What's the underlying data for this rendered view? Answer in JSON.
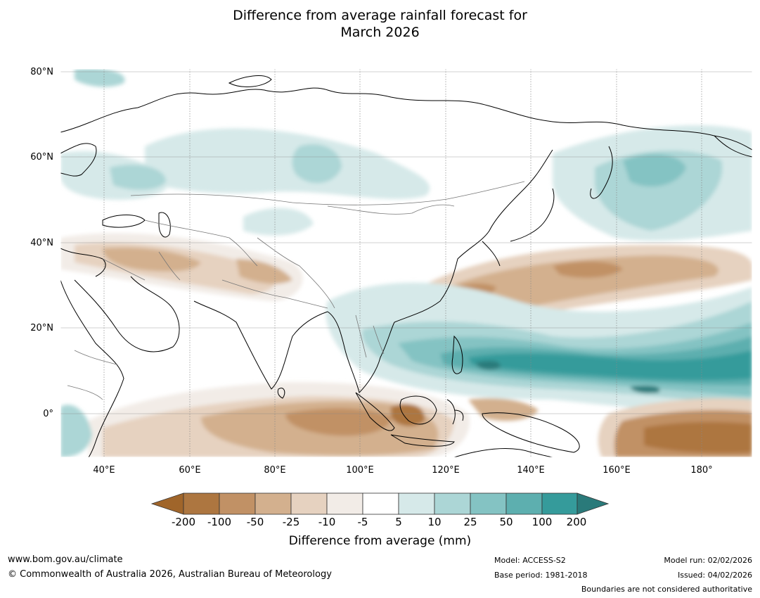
{
  "title": {
    "line1": "Difference from average rainfall forecast for",
    "line2": "March 2026"
  },
  "map": {
    "lat_labels": [
      "80°N",
      "60°N",
      "40°N",
      "20°N",
      "0°"
    ],
    "lon_labels": [
      "40°E",
      "60°E",
      "80°E",
      "100°E",
      "120°E",
      "140°E",
      "160°E",
      "180°"
    ],
    "extent": {
      "lon_min": 30,
      "lon_max": 192,
      "lat_min": -10,
      "lat_max": 80
    }
  },
  "colorbar": {
    "labels": [
      "-200",
      "-100",
      "-50",
      "-25",
      "-10",
      "-5",
      "5",
      "10",
      "25",
      "50",
      "100",
      "200"
    ],
    "colors": [
      "#a0652a",
      "#ad7640",
      "#c19165",
      "#d3b08e",
      "#e6d2c0",
      "#f2ece7",
      "#ffffff",
      "#d6e9e9",
      "#acd6d6",
      "#84c3c3",
      "#5dafaf",
      "#359b9b",
      "#2a7a7a"
    ],
    "title": "Difference from average (mm)"
  },
  "footer": {
    "url": "www.bom.gov.au/climate",
    "copyright": "© Commonwealth of Australia 2026, Australian Bureau of Meteorology",
    "model": "Model: ACCESS-S2",
    "base_period": "Base period: 1981-2018",
    "model_run": "Model run: 02/02/2026",
    "issued": "Issued: 04/02/2026",
    "disclaimer": "Boundaries are not considered authoritative"
  }
}
